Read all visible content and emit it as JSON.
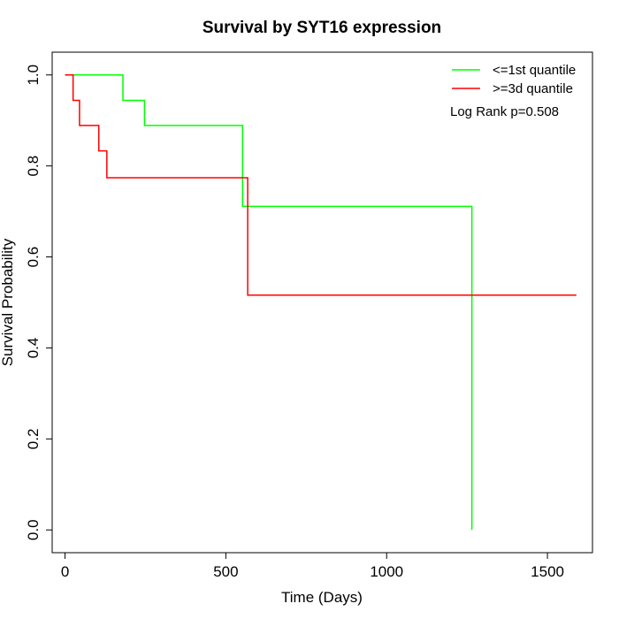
{
  "chart_data": {
    "type": "line",
    "title": "Survival by SYT16 expression",
    "xlabel": "Time (Days)",
    "ylabel": "Survival Probability",
    "xlim": [
      -40,
      1640
    ],
    "ylim": [
      -0.05,
      1.05
    ],
    "x_ticks": [
      0,
      500,
      1000,
      1500
    ],
    "y_ticks": [
      0.0,
      0.2,
      0.4,
      0.6,
      0.8,
      1.0
    ],
    "x_tick_labels": [
      "0",
      "500",
      "1000",
      "1500"
    ],
    "y_tick_labels": [
      "0.0",
      "0.2",
      "0.4",
      "0.6",
      "0.8",
      "1.0"
    ],
    "grid": false,
    "legend_position": "top-right",
    "annotation": "Log Rank p=0.508",
    "series": [
      {
        "name": "<=1st quantile",
        "color": "#00ff00",
        "step_x": [
          0,
          180,
          247,
          552,
          1265,
          1265
        ],
        "step_y": [
          1.0,
          0.944,
          0.889,
          0.711,
          0.711,
          0.0
        ]
      },
      {
        "name": ">=3d quantile",
        "color": "#ff0000",
        "step_x": [
          0,
          25,
          45,
          105,
          130,
          568,
          1590
        ],
        "step_y": [
          1.0,
          0.944,
          0.889,
          0.833,
          0.774,
          0.516,
          0.516
        ]
      }
    ]
  }
}
